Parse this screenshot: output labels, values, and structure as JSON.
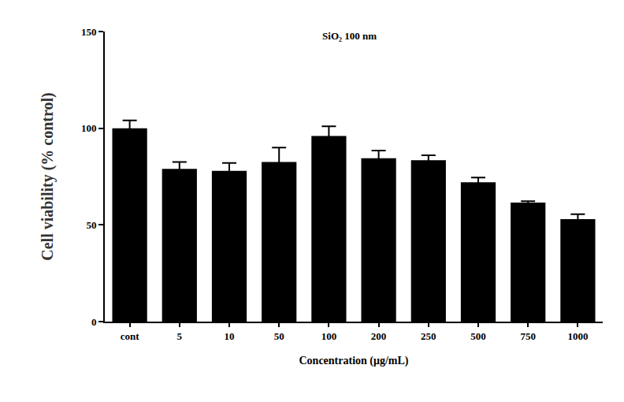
{
  "chart_data": {
    "type": "bar",
    "title": "SiO₂ 100 nm",
    "x_label": "Concentration (μg/mL)",
    "y_label": "Cell viability (% control)",
    "categories": [
      "cont",
      "5",
      "10",
      "50",
      "100",
      "200",
      "250",
      "500",
      "750",
      "1000"
    ],
    "values": [
      100,
      79,
      78,
      82.5,
      96,
      84.5,
      83.5,
      72,
      61.5,
      53
    ],
    "errors": [
      4,
      3.5,
      4,
      7.5,
      5,
      4,
      2.5,
      2.5,
      0.8,
      2.5
    ],
    "color": "#000000",
    "ylim": [
      0,
      150
    ],
    "yticks": [
      0,
      50,
      100,
      150
    ],
    "grid": false
  }
}
